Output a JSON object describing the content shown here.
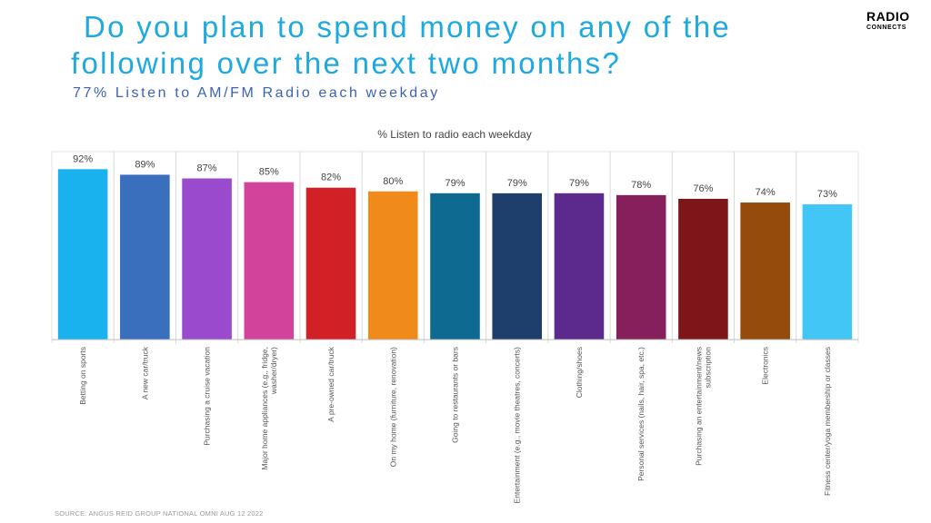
{
  "header": {
    "title_line1": "Do you plan to spend money on any of the",
    "title_line2": "following over the next two months?",
    "subtitle": "77% Listen to AM/FM Radio each weekday"
  },
  "logo": {
    "line1": "RADIO",
    "line2": "CONNECTS"
  },
  "source": "SOURCE: ANGUS REID GROUP NATIONAL OMNI AUG 12 2022",
  "chart_data": {
    "type": "bar",
    "title": "% Listen to radio each weekday",
    "xlabel": "",
    "ylabel": "",
    "ylim": [
      0,
      100
    ],
    "categories": [
      [
        "Betting on sports"
      ],
      [
        "A new car/truck"
      ],
      [
        "Purchasing a cruise vacation"
      ],
      [
        "Major home appliances (e.g., fridge,",
        "washer/dryer)"
      ],
      [
        "A pre-owned car/truck"
      ],
      [
        "On my home (furniture, renovation)"
      ],
      [
        "Going to restaurants or bars"
      ],
      [
        "Entertainment (e.g., movie theatres, concerts)"
      ],
      [
        "Clothing/shoes"
      ],
      [
        "Personal services (nails, hair, spa, etc.)"
      ],
      [
        "Purchasing an entertainment/news",
        "subscription"
      ],
      [
        "Electronics"
      ],
      [
        "Fitness center/yoga membership or classes"
      ]
    ],
    "values": [
      92,
      89,
      87,
      85,
      82,
      80,
      79,
      79,
      79,
      78,
      76,
      74,
      73
    ],
    "value_labels": [
      "92%",
      "89%",
      "87%",
      "85%",
      "82%",
      "80%",
      "79%",
      "79%",
      "79%",
      "78%",
      "76%",
      "74%",
      "73%"
    ],
    "colors": [
      "#1ab1ef",
      "#3a6fbe",
      "#9a4bcd",
      "#d2449b",
      "#d22027",
      "#f08a1a",
      "#0f6a92",
      "#1e3f6b",
      "#5b2a8c",
      "#86205c",
      "#7d1519",
      "#944b0c",
      "#42c6f6"
    ],
    "grid": false,
    "legend": "none"
  }
}
